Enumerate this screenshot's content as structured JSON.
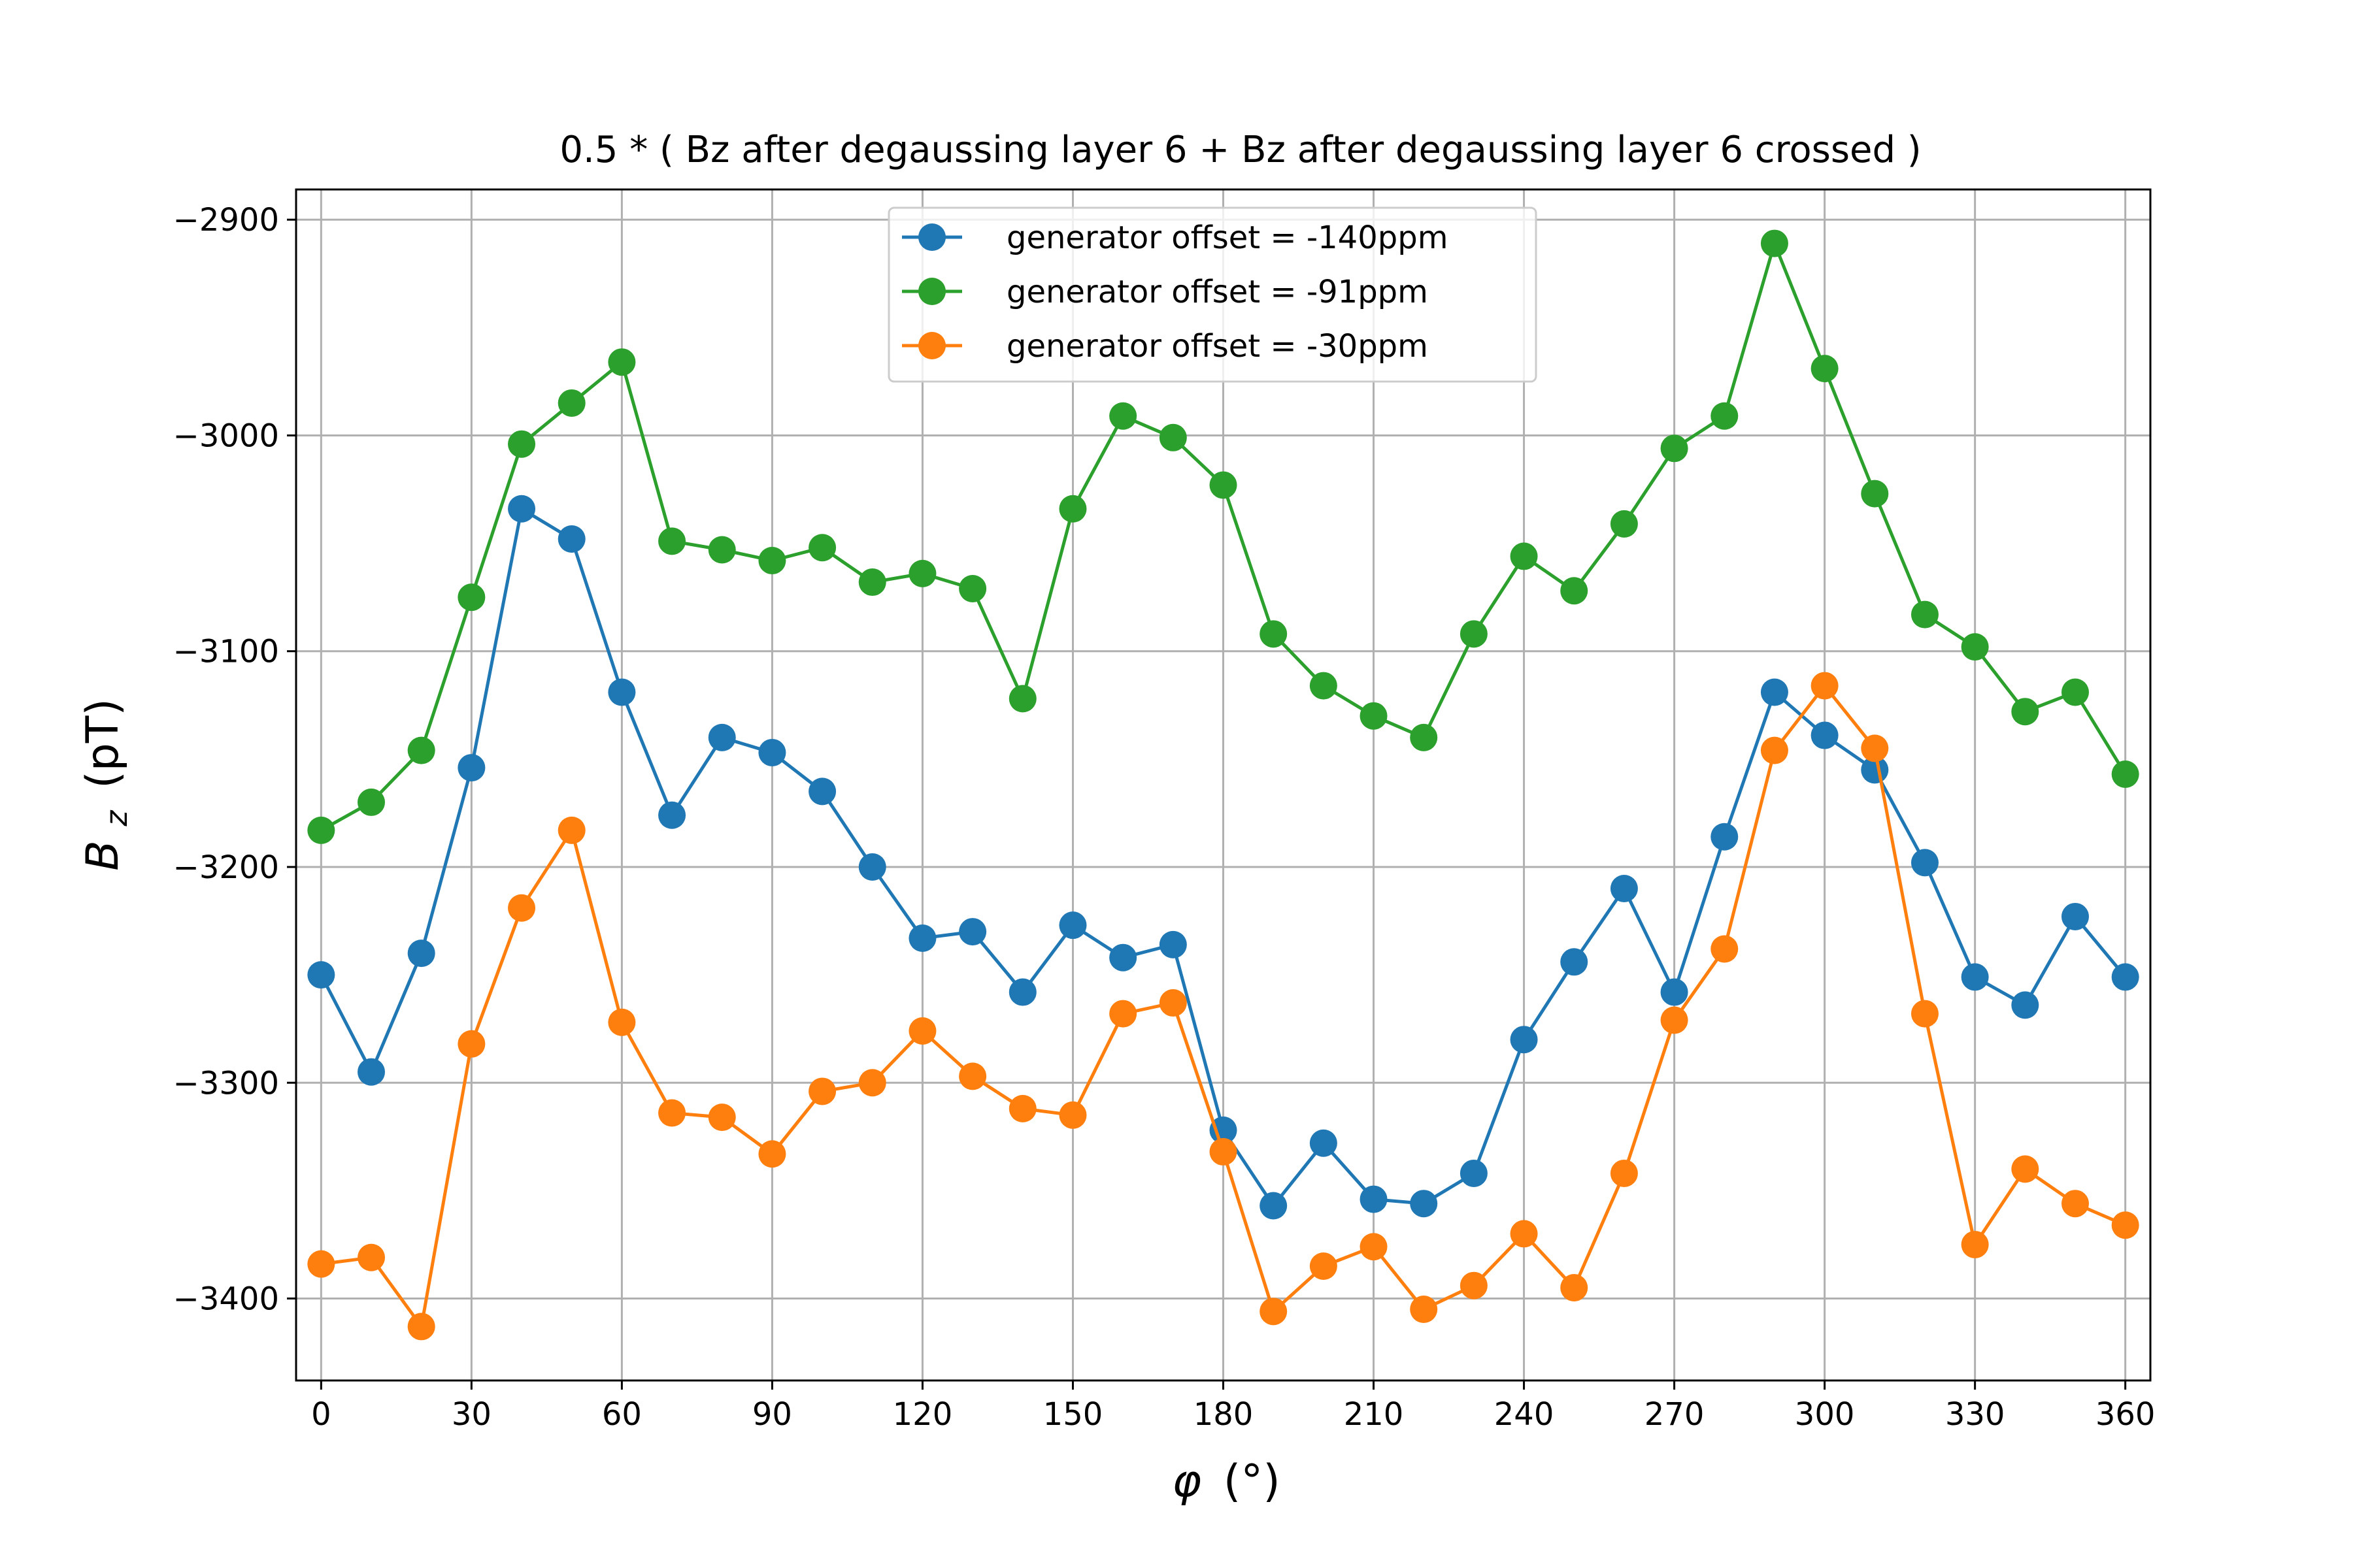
{
  "chart_data": {
    "type": "line",
    "title": "0.5 * ( Bz after degaussing layer 6 + Bz after degaussing layer 6 crossed )",
    "xlabel_symbol": "φ",
    "xlabel_unit": "(°)",
    "ylabel_symbol": "B",
    "ylabel_subscript": "z",
    "ylabel_unit": "(pT)",
    "xlim": [
      -5,
      365
    ],
    "ylim": [
      -3438,
      -2886
    ],
    "xticks": [
      0,
      30,
      60,
      90,
      120,
      150,
      180,
      210,
      240,
      270,
      300,
      330,
      360
    ],
    "yticks": [
      -2900,
      -3000,
      -3100,
      -3200,
      -3300,
      -3400
    ],
    "ytick_labels": [
      "−2900",
      "−3000",
      "−3100",
      "−3200",
      "−3300",
      "−3400"
    ],
    "grid": true,
    "legend_position": "upper center",
    "x": [
      0,
      10,
      20,
      30,
      40,
      50,
      60,
      70,
      80,
      90,
      100,
      110,
      120,
      130,
      140,
      150,
      160,
      170,
      180,
      190,
      200,
      210,
      220,
      230,
      240,
      250,
      260,
      270,
      280,
      290,
      300,
      310,
      320,
      330,
      340,
      350,
      360
    ],
    "series": [
      {
        "name": "generator offset = -140ppm",
        "color": "#1f77b4",
        "values": [
          -3250,
          -3295,
          -3240,
          -3154,
          -3034,
          -3048,
          -3119,
          -3176,
          -3140,
          -3147,
          -3165,
          -3200,
          -3233,
          -3230,
          -3258,
          -3227,
          -3242,
          -3236,
          -3322,
          -3357,
          -3328,
          -3354,
          -3356,
          -3342,
          -3280,
          -3244,
          -3210,
          -3258,
          -3186,
          -3119,
          -3139,
          -3155,
          -3198,
          -3251,
          -3264,
          -3223,
          -3251
        ]
      },
      {
        "name": "generator offset = -91ppm",
        "color": "#2ca02c",
        "values": [
          -3183,
          -3170,
          -3146,
          -3075,
          -3004,
          -2985,
          -2966,
          -3049,
          -3053,
          -3058,
          -3052,
          -3068,
          -3064,
          -3071,
          -3122,
          -3034,
          -2991,
          -3001,
          -3023,
          -3092,
          -3116,
          -3130,
          -3140,
          -3092,
          -3056,
          -3072,
          -3041,
          -3006,
          -2991,
          -2911,
          -2969,
          -3027,
          -3083,
          -3098,
          -3128,
          -3119,
          -3157
        ]
      },
      {
        "name": "generator offset = -30ppm",
        "color": "#ff7f0e",
        "values": [
          -3384,
          -3381,
          -3413,
          -3282,
          -3219,
          -3183,
          -3272,
          -3314,
          -3316,
          -3333,
          -3304,
          -3300,
          -3276,
          -3297,
          -3312,
          -3315,
          -3268,
          -3263,
          -3332,
          -3406,
          -3385,
          -3376,
          -3405,
          -3394,
          -3370,
          -3395,
          -3342,
          -3271,
          -3238,
          -3146,
          -3116,
          -3145,
          -3268,
          -3375,
          -3340,
          -3356,
          -3366
        ]
      }
    ]
  }
}
